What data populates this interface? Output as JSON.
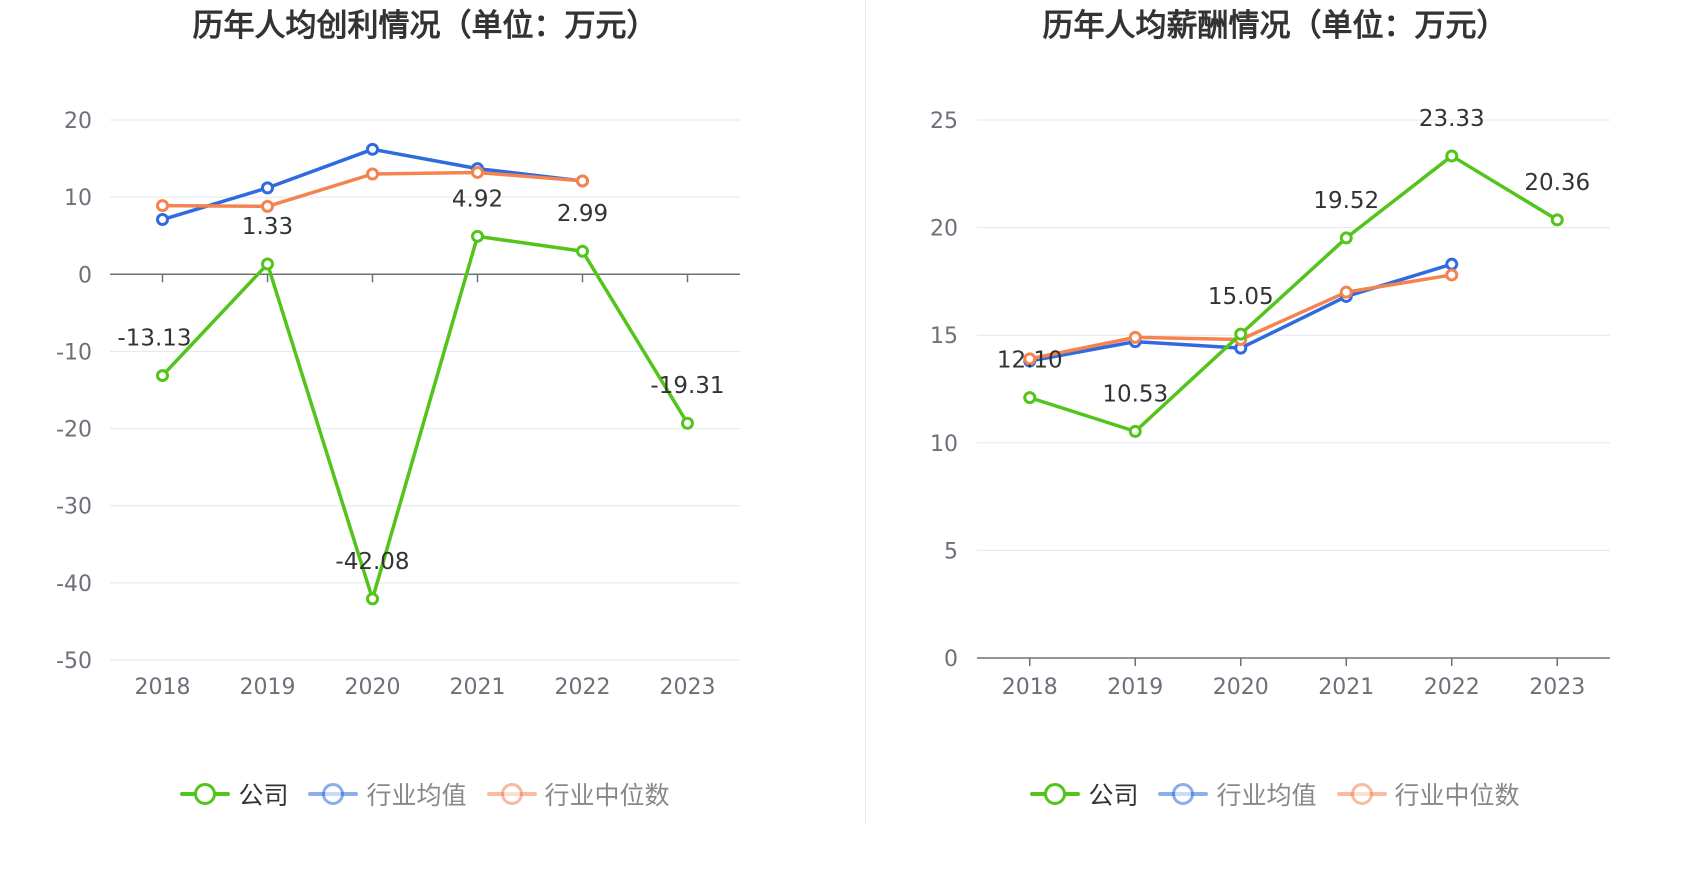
{
  "chart_data": [
    {
      "type": "line",
      "title": "历年人均创利情况（单位：万元）",
      "categories": [
        "2018",
        "2019",
        "2020",
        "2021",
        "2022",
        "2023"
      ],
      "ylim": [
        -50,
        20
      ],
      "yticks": [
        20,
        10,
        0,
        -10,
        -20,
        -30,
        -40,
        -50
      ],
      "grid": true,
      "legend_position": "bottom",
      "series": [
        {
          "name": "公司",
          "color": "#52c41a",
          "values": [
            -13.13,
            1.33,
            -42.08,
            4.92,
            2.99,
            -19.31
          ],
          "labels": [
            "-13.13",
            "1.33",
            "-42.08",
            "4.92",
            "2.99",
            "-19.31"
          ]
        },
        {
          "name": "行业均值",
          "color": "#2f6bdf",
          "values": [
            7.1,
            11.2,
            16.2,
            13.7,
            12.1,
            null
          ]
        },
        {
          "name": "行业中位数",
          "color": "#f5834f",
          "values": [
            8.9,
            8.8,
            13.0,
            13.2,
            12.1,
            null
          ]
        }
      ]
    },
    {
      "type": "line",
      "title": "历年人均薪酬情况（单位：万元）",
      "categories": [
        "2018",
        "2019",
        "2020",
        "2021",
        "2022",
        "2023"
      ],
      "ylim": [
        0,
        25
      ],
      "yticks": [
        25,
        20,
        15,
        10,
        5,
        0
      ],
      "grid": true,
      "legend_position": "bottom",
      "series": [
        {
          "name": "公司",
          "color": "#52c41a",
          "values": [
            12.1,
            10.53,
            15.05,
            19.52,
            23.33,
            20.36
          ],
          "labels": [
            "12.10",
            "10.53",
            "15.05",
            "19.52",
            "23.33",
            "20.36"
          ]
        },
        {
          "name": "行业均值",
          "color": "#2f6bdf",
          "values": [
            13.8,
            14.7,
            14.4,
            16.8,
            18.3,
            null
          ]
        },
        {
          "name": "行业中位数",
          "color": "#f5834f",
          "values": [
            13.9,
            14.9,
            14.8,
            17.0,
            17.8,
            null
          ]
        }
      ]
    }
  ]
}
